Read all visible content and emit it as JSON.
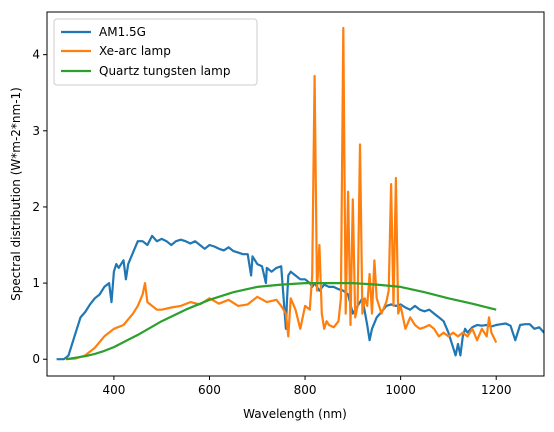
{
  "chart_data": {
    "type": "line",
    "title": "",
    "xlabel": "Wavelength (nm)",
    "ylabel": "Spectral distribution (W*m-2*nm-1)",
    "xlim": [
      260,
      1300
    ],
    "ylim": [
      -0.22,
      4.56
    ],
    "xticks": [
      400,
      600,
      800,
      1000,
      1200
    ],
    "yticks": [
      0,
      1,
      2,
      3,
      4
    ],
    "grid": false,
    "legend": "top-left",
    "series": [
      {
        "name": "AM1.5G",
        "color": "#1f77b4",
        "x": [
          280,
          295,
          300,
          305,
          310,
          320,
          330,
          340,
          350,
          360,
          370,
          380,
          390,
          395,
          400,
          405,
          410,
          420,
          425,
          430,
          440,
          450,
          460,
          470,
          480,
          490,
          500,
          510,
          520,
          530,
          540,
          550,
          560,
          570,
          580,
          590,
          600,
          610,
          620,
          630,
          640,
          650,
          660,
          670,
          680,
          687,
          690,
          700,
          710,
          718,
          720,
          730,
          740,
          750,
          760,
          762,
          765,
          770,
          780,
          790,
          800,
          810,
          815,
          820,
          830,
          840,
          850,
          860,
          870,
          880,
          890,
          900,
          910,
          920,
          930,
          935,
          940,
          950,
          960,
          970,
          980,
          990,
          1000,
          1010,
          1020,
          1030,
          1040,
          1050,
          1060,
          1070,
          1080,
          1090,
          1100,
          1110,
          1115,
          1120,
          1125,
          1130,
          1135,
          1140,
          1150,
          1160,
          1170,
          1180,
          1190,
          1200,
          1210,
          1220,
          1230,
          1240,
          1250,
          1260,
          1270,
          1280,
          1290,
          1300
        ],
        "y": [
          0,
          0,
          0.02,
          0.05,
          0.15,
          0.35,
          0.55,
          0.62,
          0.72,
          0.8,
          0.85,
          0.95,
          1.0,
          0.75,
          1.15,
          1.25,
          1.2,
          1.3,
          1.05,
          1.25,
          1.4,
          1.55,
          1.55,
          1.5,
          1.62,
          1.55,
          1.58,
          1.55,
          1.5,
          1.55,
          1.57,
          1.55,
          1.52,
          1.55,
          1.5,
          1.45,
          1.5,
          1.48,
          1.45,
          1.43,
          1.47,
          1.42,
          1.4,
          1.38,
          1.38,
          1.1,
          1.35,
          1.25,
          1.22,
          1.0,
          1.2,
          1.15,
          1.2,
          1.22,
          0.4,
          0.75,
          1.1,
          1.15,
          1.1,
          1.05,
          1.05,
          1.0,
          0.95,
          1.0,
          0.9,
          0.98,
          0.95,
          0.95,
          0.92,
          0.9,
          0.85,
          0.6,
          0.7,
          0.8,
          0.45,
          0.25,
          0.4,
          0.55,
          0.62,
          0.7,
          0.72,
          0.7,
          0.72,
          0.68,
          0.65,
          0.7,
          0.65,
          0.63,
          0.65,
          0.6,
          0.55,
          0.5,
          0.35,
          0.15,
          0.05,
          0.2,
          0.05,
          0.3,
          0.4,
          0.35,
          0.42,
          0.45,
          0.44,
          0.45,
          0.43,
          0.45,
          0.46,
          0.47,
          0.44,
          0.25,
          0.45,
          0.46,
          0.46,
          0.4,
          0.42,
          0.35
        ]
      },
      {
        "name": "Xe-arc lamp",
        "color": "#ff7f0e",
        "x": [
          300,
          320,
          340,
          360,
          380,
          400,
          420,
          440,
          450,
          460,
          465,
          470,
          480,
          490,
          500,
          520,
          540,
          560,
          580,
          600,
          620,
          640,
          660,
          680,
          700,
          720,
          740,
          750,
          760,
          765,
          770,
          780,
          790,
          800,
          810,
          815,
          820,
          825,
          830,
          835,
          840,
          845,
          850,
          860,
          870,
          875,
          880,
          885,
          890,
          895,
          900,
          905,
          910,
          915,
          920,
          925,
          930,
          935,
          940,
          945,
          950,
          960,
          970,
          975,
          980,
          985,
          990,
          995,
          1000,
          1010,
          1020,
          1030,
          1040,
          1050,
          1060,
          1070,
          1080,
          1090,
          1100,
          1110,
          1120,
          1130,
          1140,
          1150,
          1160,
          1170,
          1180,
          1185,
          1190,
          1200
        ],
        "y": [
          0,
          0.01,
          0.05,
          0.15,
          0.3,
          0.4,
          0.45,
          0.6,
          0.7,
          0.85,
          1.0,
          0.75,
          0.7,
          0.65,
          0.65,
          0.68,
          0.7,
          0.75,
          0.72,
          0.8,
          0.73,
          0.78,
          0.7,
          0.72,
          0.82,
          0.75,
          0.78,
          0.7,
          0.6,
          0.3,
          0.8,
          0.65,
          0.4,
          0.7,
          0.65,
          1.1,
          3.72,
          0.9,
          1.5,
          0.6,
          0.4,
          0.5,
          0.45,
          0.42,
          0.5,
          0.8,
          4.35,
          0.6,
          2.2,
          0.45,
          2.1,
          0.55,
          0.7,
          2.82,
          0.6,
          0.8,
          0.7,
          1.12,
          0.6,
          1.3,
          0.8,
          0.6,
          0.75,
          0.9,
          2.3,
          0.7,
          2.38,
          0.6,
          0.7,
          0.4,
          0.55,
          0.45,
          0.4,
          0.42,
          0.45,
          0.4,
          0.3,
          0.35,
          0.3,
          0.35,
          0.3,
          0.35,
          0.3,
          0.4,
          0.25,
          0.4,
          0.3,
          0.55,
          0.35,
          0.22
        ]
      },
      {
        "name": "Quartz tungsten lamp",
        "color": "#2ca02c",
        "x": [
          300,
          320,
          340,
          360,
          380,
          400,
          450,
          500,
          550,
          600,
          650,
          700,
          750,
          800,
          850,
          900,
          950,
          1000,
          1050,
          1100,
          1150,
          1200
        ],
        "y": [
          0,
          0.02,
          0.04,
          0.07,
          0.11,
          0.16,
          0.32,
          0.5,
          0.65,
          0.78,
          0.88,
          0.95,
          0.98,
          1.0,
          1.0,
          1.0,
          0.98,
          0.95,
          0.88,
          0.8,
          0.73,
          0.65
        ]
      }
    ]
  }
}
